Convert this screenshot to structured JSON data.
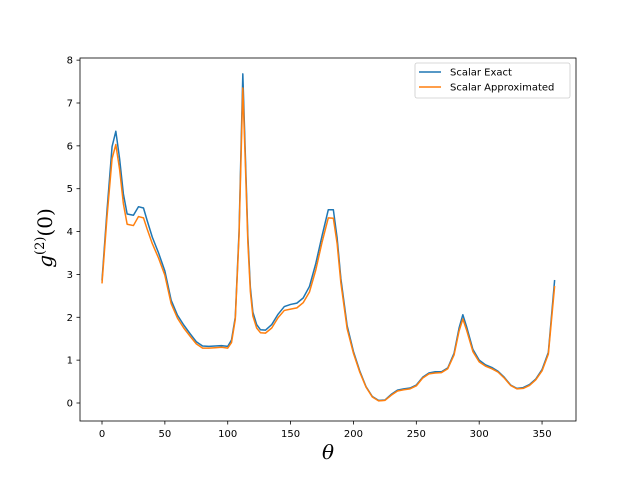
{
  "chart_data": {
    "type": "line",
    "title": "",
    "xlabel": "θ",
    "ylabel_main": "g",
    "ylabel_sup": "(2)",
    "ylabel_tail": "(0)",
    "xlim": [
      -17.5,
      377
    ],
    "ylim": [
      -0.42,
      8.05
    ],
    "xticks": [
      0,
      50,
      100,
      150,
      200,
      250,
      300,
      350
    ],
    "yticks": [
      0,
      1,
      2,
      3,
      4,
      5,
      6,
      7,
      8
    ],
    "grid": false,
    "legend_position": "top-right",
    "x": [
      0,
      4,
      8,
      11,
      14,
      17,
      20,
      25,
      29,
      33,
      36,
      40,
      45,
      50,
      55,
      60,
      65,
      70,
      75,
      80,
      85,
      90,
      95,
      100,
      103,
      106,
      109,
      112,
      114,
      116,
      118,
      120,
      123,
      126,
      130,
      135,
      140,
      145,
      150,
      155,
      160,
      165,
      170,
      175,
      180,
      184,
      187,
      190,
      195,
      200,
      205,
      210,
      215,
      220,
      225,
      230,
      235,
      240,
      245,
      250,
      255,
      260,
      265,
      270,
      275,
      280,
      284,
      287,
      290,
      295,
      300,
      305,
      310,
      315,
      320,
      325,
      330,
      335,
      340,
      345,
      350,
      355,
      360
    ],
    "series": [
      {
        "name": "Scalar Exact",
        "color": "#1f77b4",
        "values": [
          2.86,
          4.5,
          5.98,
          6.34,
          5.7,
          4.88,
          4.41,
          4.38,
          4.58,
          4.55,
          4.25,
          3.87,
          3.5,
          3.08,
          2.4,
          2.05,
          1.82,
          1.62,
          1.43,
          1.33,
          1.32,
          1.33,
          1.34,
          1.32,
          1.47,
          2.0,
          4.0,
          7.68,
          5.8,
          3.9,
          2.7,
          2.12,
          1.83,
          1.71,
          1.7,
          1.83,
          2.07,
          2.25,
          2.3,
          2.33,
          2.45,
          2.72,
          3.25,
          3.9,
          4.51,
          4.51,
          3.85,
          2.9,
          1.8,
          1.2,
          0.75,
          0.38,
          0.15,
          0.06,
          0.07,
          0.2,
          0.3,
          0.33,
          0.35,
          0.42,
          0.6,
          0.7,
          0.73,
          0.73,
          0.82,
          1.16,
          1.75,
          2.06,
          1.78,
          1.25,
          1.0,
          0.89,
          0.83,
          0.74,
          0.6,
          0.42,
          0.34,
          0.36,
          0.43,
          0.56,
          0.78,
          1.18,
          2.87
        ]
      },
      {
        "name": "Scalar Approximated",
        "color": "#ff7f0e",
        "values": [
          2.79,
          4.35,
          5.7,
          6.03,
          5.45,
          4.65,
          4.17,
          4.14,
          4.35,
          4.32,
          4.05,
          3.72,
          3.38,
          2.98,
          2.32,
          1.98,
          1.75,
          1.56,
          1.38,
          1.28,
          1.28,
          1.29,
          1.3,
          1.28,
          1.41,
          1.95,
          3.9,
          7.35,
          5.6,
          3.75,
          2.6,
          2.03,
          1.75,
          1.64,
          1.63,
          1.75,
          1.99,
          2.16,
          2.19,
          2.22,
          2.34,
          2.59,
          3.1,
          3.75,
          4.32,
          4.31,
          3.72,
          2.8,
          1.73,
          1.16,
          0.72,
          0.37,
          0.14,
          0.05,
          0.06,
          0.18,
          0.28,
          0.31,
          0.33,
          0.4,
          0.58,
          0.68,
          0.7,
          0.71,
          0.8,
          1.12,
          1.68,
          1.96,
          1.7,
          1.2,
          0.96,
          0.86,
          0.8,
          0.72,
          0.58,
          0.41,
          0.33,
          0.34,
          0.41,
          0.54,
          0.75,
          1.14,
          2.73
        ]
      }
    ]
  }
}
